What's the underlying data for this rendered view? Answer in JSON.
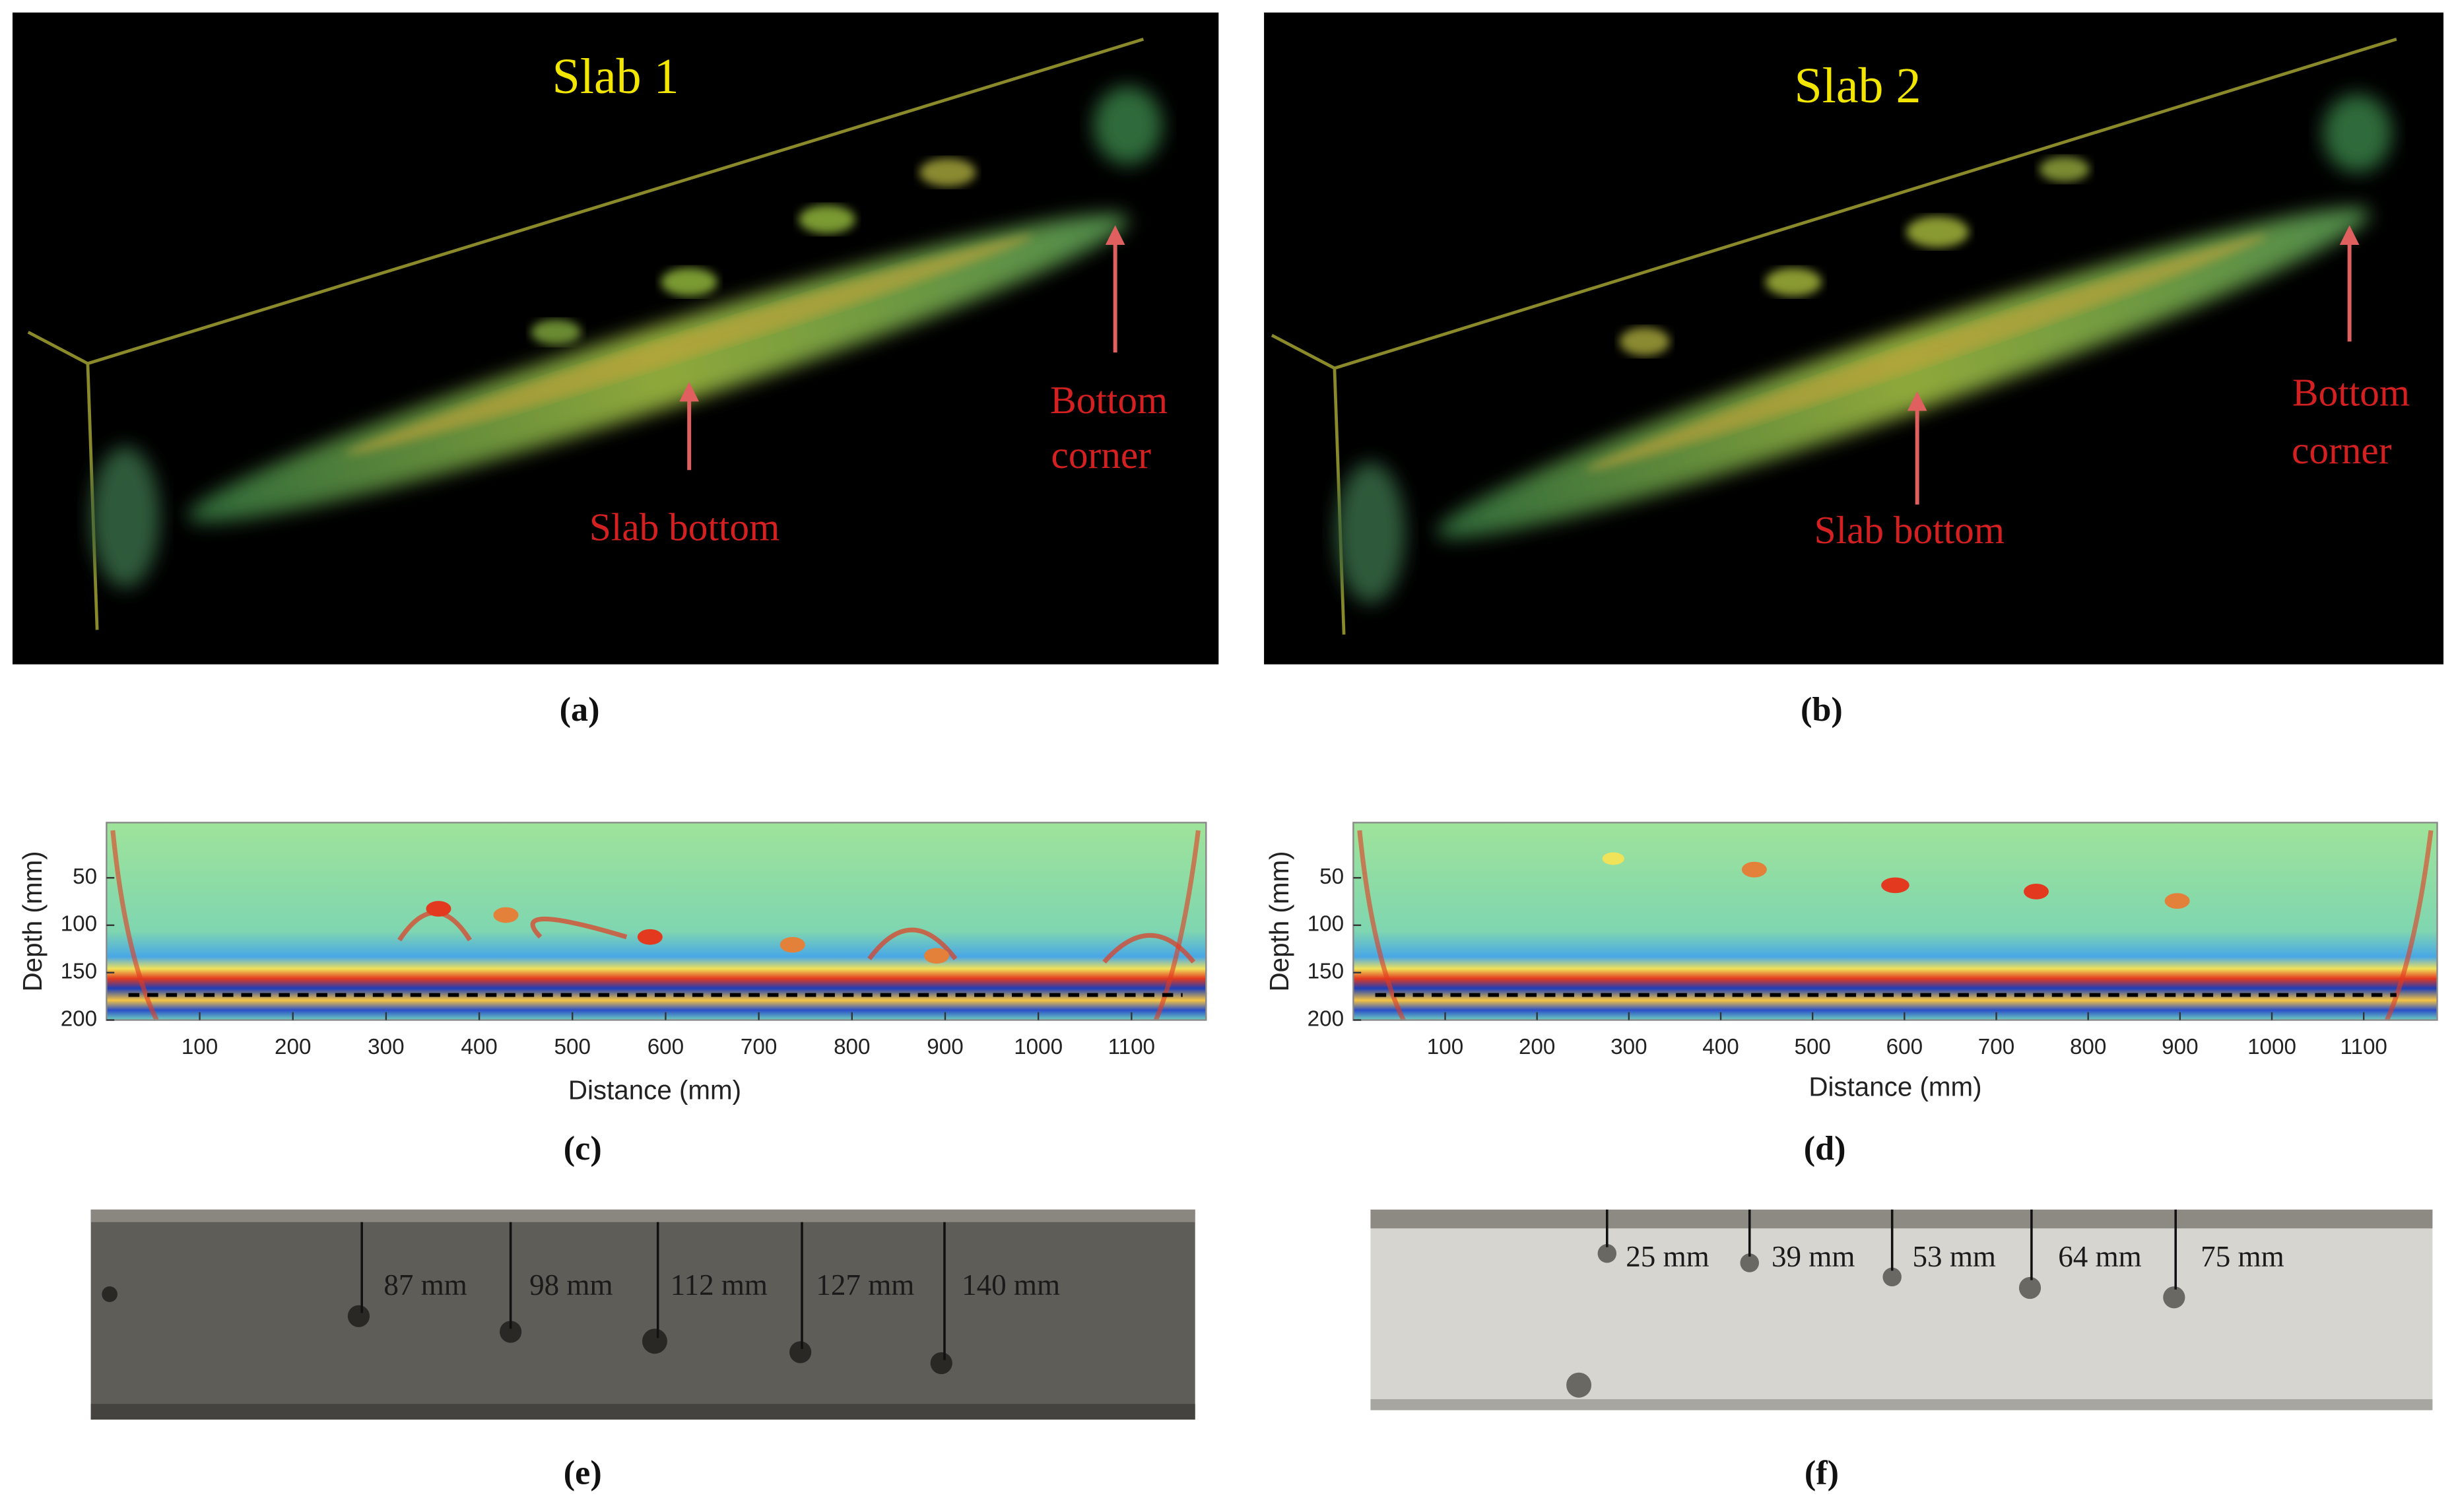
{
  "panel_a": {
    "label": "(a)",
    "title": "Slab 1",
    "slab_bottom": "Slab bottom",
    "bottom_corner": [
      "Bottom",
      "corner"
    ]
  },
  "panel_b": {
    "label": "(b)",
    "title": "Slab 2",
    "slab_bottom": "Slab bottom",
    "bottom_corner": [
      "Bottom",
      "corner"
    ]
  },
  "panel_c": {
    "label": "(c)",
    "ylabel": "Depth (mm)",
    "xlabel": "Distance (mm)",
    "ylim": [
      0,
      200
    ],
    "yticks": [
      50,
      100,
      150,
      200
    ],
    "xlim": [
      0,
      1180
    ],
    "xticks": [
      100,
      200,
      300,
      400,
      500,
      600,
      700,
      800,
      900,
      1000,
      1100
    ]
  },
  "panel_d": {
    "label": "(d)",
    "ylabel": "Depth (mm)",
    "xlabel": "Distance (mm)",
    "ylim": [
      0,
      200
    ],
    "yticks": [
      50,
      100,
      150,
      200
    ],
    "xlim": [
      0,
      1180
    ],
    "xticks": [
      100,
      200,
      300,
      400,
      500,
      600,
      700,
      800,
      900,
      1000,
      1100
    ]
  },
  "panel_e": {
    "label": "(e)",
    "depth_labels": [
      "87 mm",
      "98 mm",
      "112 mm",
      "127 mm",
      "140 mm"
    ]
  },
  "panel_f": {
    "label": "(f)",
    "depth_labels": [
      "25 mm",
      "39 mm",
      "53 mm",
      "64 mm",
      "75 mm"
    ]
  }
}
